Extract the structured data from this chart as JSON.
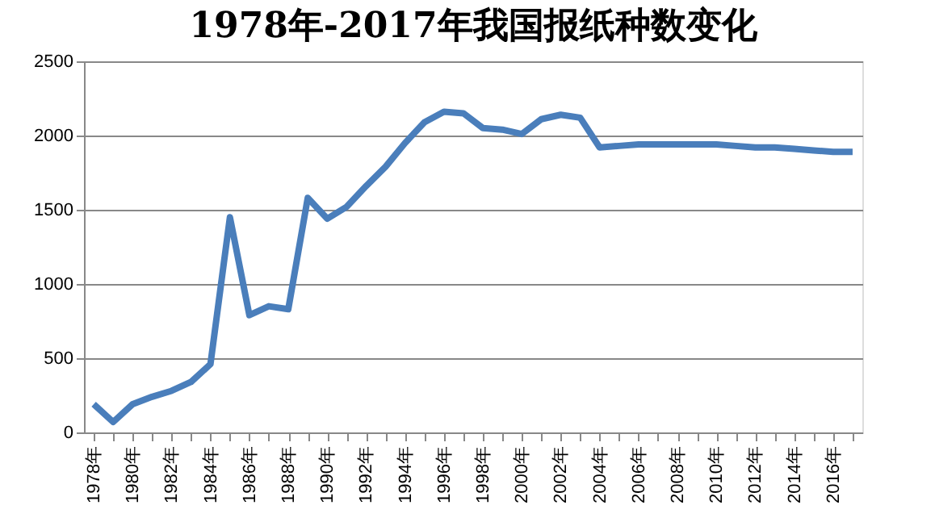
{
  "chart_data": {
    "type": "line",
    "title": "1978年-2017年我国报纸种数变化",
    "categories": [
      "1978年",
      null,
      "1980年",
      null,
      "1982年",
      null,
      "1984年",
      null,
      "1986年",
      null,
      "1988年",
      null,
      "1990年",
      null,
      "1992年",
      null,
      "1994年",
      null,
      "1996年",
      null,
      "1998年",
      null,
      "2000年",
      null,
      "2002年",
      null,
      "2004年",
      null,
      "2006年",
      null,
      "2008年",
      null,
      "2010年",
      null,
      "2012年",
      null,
      "2014年",
      null,
      "2016年",
      null
    ],
    "series": [
      {
        "color": "#4a7ebb",
        "values": [
          190,
          70,
          190,
          240,
          280,
          340,
          460,
          1450,
          790,
          850,
          830,
          1580,
          1440,
          1520,
          1660,
          1790,
          1950,
          2090,
          2160,
          2150,
          2050,
          2040,
          2010,
          2110,
          2140,
          2120,
          1920,
          1930,
          1940,
          1940,
          1940,
          1940,
          1940,
          1930,
          1920,
          1920,
          1910,
          1900,
          1890,
          1890
        ]
      }
    ],
    "ylim": [
      0,
      2500
    ],
    "yticks": [
      0,
      500,
      1000,
      1500,
      2000,
      2500
    ],
    "grid": "y",
    "marker": "none",
    "line_style": "solid"
  }
}
